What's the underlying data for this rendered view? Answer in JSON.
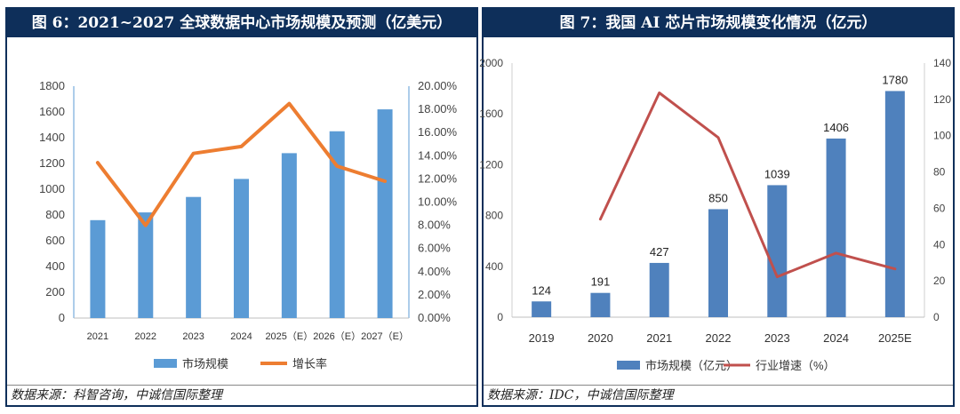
{
  "left": {
    "title": "图 6：2021~2027 全球数据中心市场规模及预测（亿美元）",
    "source": "数据来源：科智咨询，中诚信国际整理",
    "legend_bar": "市场规模",
    "legend_line": "增长率"
  },
  "right": {
    "title": "图 7：我国 AI 芯片市场规模变化情况（亿元）",
    "source": "数据来源：IDC，中诚信国际整理",
    "legend_bar": "市场规模（亿元）",
    "legend_line": "行业增速（%）"
  },
  "chart_data": [
    {
      "type": "bar",
      "categories": [
        "2021",
        "2022",
        "2023",
        "2024",
        "2025（E）",
        "2026（E）",
        "2027（E）"
      ],
      "series": [
        {
          "name": "市场规模",
          "type": "bar",
          "axis": "left",
          "color": "#5b9bd5",
          "values": [
            760,
            820,
            940,
            1080,
            1280,
            1450,
            1620
          ]
        },
        {
          "name": "增长率",
          "type": "line",
          "axis": "right",
          "color": "#ed7d31",
          "values": [
            13.4,
            8.0,
            14.2,
            14.8,
            18.5,
            13.1,
            11.8
          ]
        }
      ],
      "y_left": {
        "min": 0,
        "max": 1800,
        "ticks": [
          "0",
          "200",
          "400",
          "600",
          "800",
          "1000",
          "1200",
          "1400",
          "1600",
          "1800"
        ]
      },
      "y_right": {
        "min": 0,
        "max": 20,
        "ticks": [
          "0.00%",
          "2.00%",
          "4.00%",
          "6.00%",
          "8.00%",
          "10.00%",
          "12.00%",
          "14.00%",
          "16.00%",
          "18.00%",
          "20.00%"
        ]
      },
      "grid": false,
      "legend": "bottom"
    },
    {
      "type": "bar",
      "categories": [
        "2019",
        "2020",
        "2021",
        "2022",
        "2023",
        "2024",
        "2025E"
      ],
      "series": [
        {
          "name": "市场规模（亿元）",
          "type": "bar",
          "axis": "left",
          "color": "#4f81bd",
          "values": [
            124,
            191,
            427,
            850,
            1039,
            1406,
            1780
          ],
          "labels": [
            "124",
            "191",
            "427",
            "850",
            "1039",
            "1406",
            "1780"
          ]
        },
        {
          "name": "行业增速（%）",
          "type": "line",
          "axis": "right",
          "color": "#c0504d",
          "values": [
            null,
            54,
            123.6,
            99,
            22.2,
            35.3,
            26.6
          ]
        }
      ],
      "y_left": {
        "min": 0,
        "max": 2000,
        "ticks": [
          "0",
          "400",
          "800",
          "1200",
          "1600",
          "2000"
        ]
      },
      "y_right": {
        "min": 0,
        "max": 140,
        "ticks": [
          "0",
          "20",
          "40",
          "60",
          "80",
          "100",
          "120",
          "140"
        ]
      },
      "grid": false,
      "legend": "bottom"
    }
  ]
}
